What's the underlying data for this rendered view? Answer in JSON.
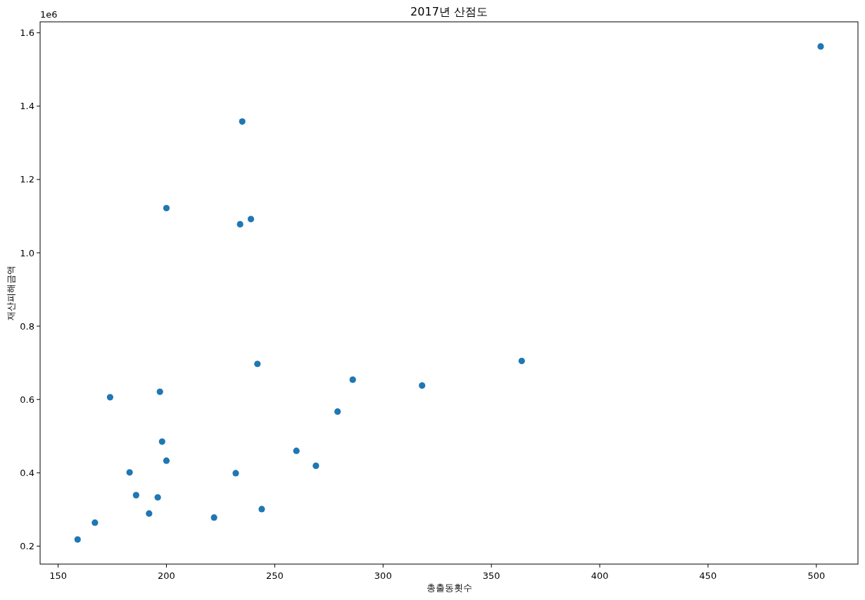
{
  "chart_data": {
    "type": "scatter",
    "title": "2017년 산점도",
    "xlabel": "총출동횟수",
    "ylabel": "재산피해금액",
    "annotations": [
      "1e6"
    ],
    "x": [
      502,
      235,
      200,
      239,
      234,
      242,
      364,
      286,
      318,
      174,
      197,
      279,
      198,
      260,
      200,
      183,
      269,
      232,
      186,
      196,
      192,
      167,
      159,
      222,
      244
    ],
    "series": [
      {
        "color": "#1f77b4",
        "values": [
          1.563,
          1.358,
          1.122,
          1.092,
          1.078,
          0.697,
          0.705,
          0.654,
          0.638,
          0.606,
          0.621,
          0.567,
          0.485,
          0.46,
          0.433,
          0.401,
          0.419,
          0.399,
          0.339,
          0.333,
          0.289,
          0.264,
          0.218,
          0.278,
          0.301
        ]
      }
    ],
    "xlim": [
      141.7,
      519.2
    ],
    "ylim": [
      0.151,
      1.63
    ],
    "xticks": [
      150,
      200,
      250,
      300,
      350,
      400,
      450,
      500
    ],
    "yticks": [
      0.2,
      0.4,
      0.6,
      0.8,
      {
        "value": 1,
        "label": "1.0"
      },
      1.2,
      1.4,
      1.6
    ],
    "marker": "circle"
  }
}
